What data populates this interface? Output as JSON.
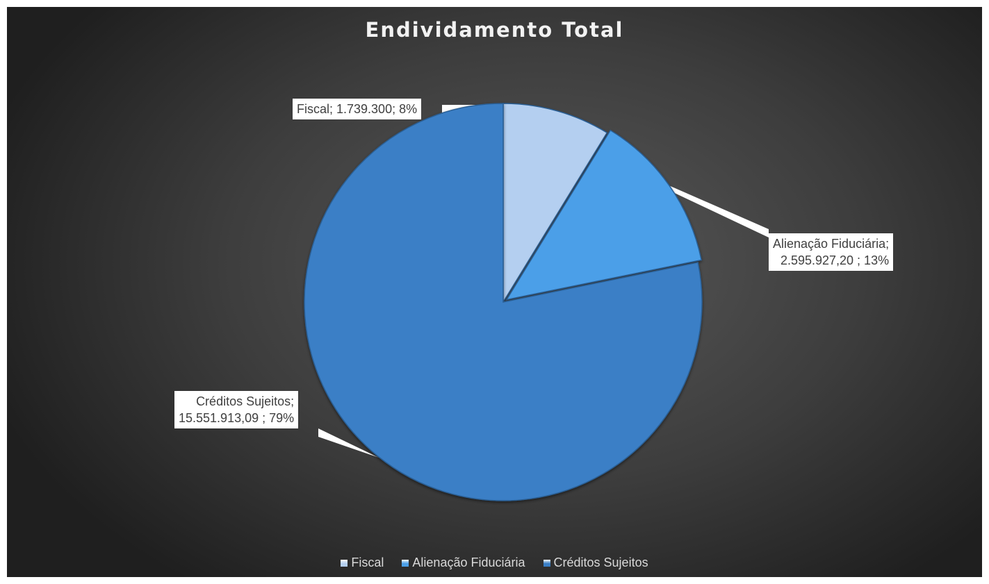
{
  "chart_data": {
    "type": "pie",
    "title": "Endividamento Total",
    "categories": [
      "Fiscal",
      "Alienação Fiduciária",
      "Créditos Sujeitos"
    ],
    "values": [
      1739300,
      2595927.2,
      15551913.09
    ],
    "percent": [
      8,
      13,
      79
    ],
    "colors": [
      "#b4cff0",
      "#4b9fe8",
      "#3a7fc6"
    ],
    "data_labels": [
      {
        "line1": "Fiscal; 1.739.300; 8%",
        "line2": ""
      },
      {
        "line1": "Alienação Fiduciária;",
        "line2": "2.595.927,20 ; 13%"
      },
      {
        "line1": "Créditos Sujeitos;",
        "line2": "15.551.913,09 ; 79%"
      }
    ],
    "legend_placement": "bottom",
    "legend": [
      "Fiscal",
      "Alienação Fiduciária",
      "Créditos Sujeitos"
    ]
  }
}
